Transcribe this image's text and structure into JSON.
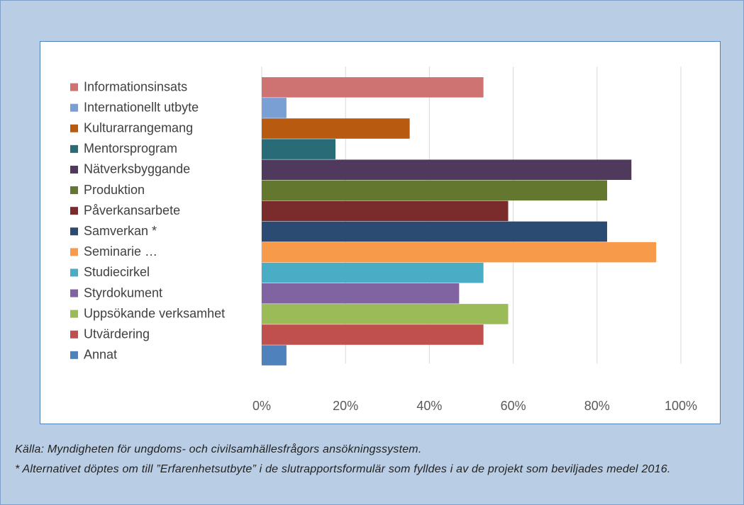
{
  "chart_data": {
    "type": "barh",
    "categories": [
      "Informationsinsats",
      "Internationellt utbyte",
      "Kulturarrangemang",
      "Mentorsprogram",
      "Nätverksbyggande",
      "Produktion",
      "Påverkansarbete",
      "Samverkan *",
      "Seminarie …",
      "Studiecirkel",
      "Styrdokument",
      "Uppsökande verksamhet",
      "Utvärdering",
      "Annat"
    ],
    "values": [
      52.9,
      5.9,
      35.3,
      17.6,
      88.2,
      82.4,
      58.8,
      82.4,
      94.1,
      52.9,
      47.1,
      58.8,
      52.9,
      5.9
    ],
    "colors": [
      "#cf7272",
      "#7a9fd4",
      "#b85a0f",
      "#2a6b78",
      "#4f3a5e",
      "#63772f",
      "#7a2b2b",
      "#2c4b73",
      "#f79a4a",
      "#4bacc6",
      "#8063a1",
      "#9bbb59",
      "#c0504d",
      "#4f81bd"
    ],
    "xlim": [
      0,
      100
    ],
    "xticks": [
      {
        "value": 0,
        "label": "0%"
      },
      {
        "value": 20,
        "label": "20%"
      },
      {
        "value": 40,
        "label": "40%"
      },
      {
        "value": 60,
        "label": "60%"
      },
      {
        "value": 80,
        "label": "80%"
      },
      {
        "value": 100,
        "label": "100%"
      }
    ],
    "grid": true
  },
  "notes": {
    "source": "Källa: Myndigheten för ungdoms- och civilsamhällesfrågors ansökningssystem.",
    "footnote": "* Alternativet döptes om till ”Erfarenhetsutbyte” i de slutrapportsformulär som fylldes i av de projekt som beviljades medel 2016."
  }
}
